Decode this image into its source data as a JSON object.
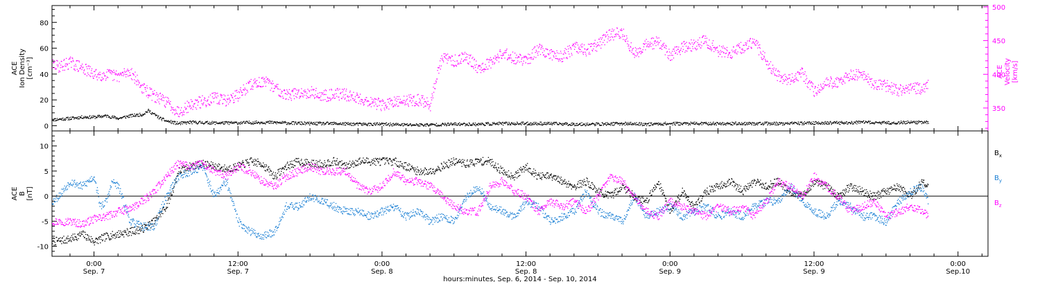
{
  "figure": {
    "xaxis_title": "hours:minutes, Sep. 6, 2014 - Sep. 10, 2014",
    "x_ticks": [
      {
        "t": 0,
        "line1": "0:00",
        "line2": "Sep. 7"
      },
      {
        "t": 12,
        "line1": "12:00",
        "line2": "Sep. 7"
      },
      {
        "t": 24,
        "line1": "0:00",
        "line2": "Sep. 8"
      },
      {
        "t": 36,
        "line1": "12:00",
        "line2": "Sep. 8"
      },
      {
        "t": 48,
        "line1": "0:00",
        "line2": "Sep. 9"
      },
      {
        "t": 60,
        "line1": "12:00",
        "line2": "Sep. 9"
      },
      {
        "t": 72,
        "line1": "0:00",
        "line2": "Sep.10"
      }
    ],
    "x_ticks_hours_note": "t = hours since Sep 7 00:00 UT",
    "colors": {
      "axis": "#000000",
      "density": "#000000",
      "velocity": "#ff00ff",
      "bx": "#000000",
      "by": "#1a7fd4",
      "bz": "#ff00ff"
    }
  },
  "chart_data": [
    {
      "type": "scatter",
      "panel": "top",
      "ylabel_left_lines": [
        "ACE",
        "Ion Density",
        "[cm⁻³]"
      ],
      "ylabel_right_lines": [
        "ACE",
        "Velocity",
        "[km/s]"
      ],
      "xlim_hours": [
        -3.5,
        74.5
      ],
      "ylim_left": [
        -4,
        93
      ],
      "ylim_right": [
        316,
        502
      ],
      "yticks_left": [
        0,
        20,
        40,
        60,
        80
      ],
      "yticks_right": [
        350,
        400,
        450,
        500
      ],
      "series": [
        {
          "name": "Ion Density",
          "axis": "left",
          "x": [
            -3.5,
            -2,
            -1,
            0,
            1,
            2,
            3,
            4,
            4.5,
            5,
            5.5,
            6,
            6.5,
            7,
            8,
            10,
            12,
            14,
            16,
            18,
            20,
            22,
            24,
            26,
            28,
            30,
            32,
            34,
            36,
            38,
            40,
            42,
            44,
            46,
            48,
            50,
            52,
            54,
            56,
            58,
            60,
            62,
            64,
            66,
            68,
            69.5
          ],
          "y": [
            5,
            6,
            7,
            7,
            8,
            6,
            8,
            9,
            12,
            9,
            6,
            4,
            3,
            2,
            3,
            2.5,
            2.5,
            3,
            2.5,
            2,
            2,
            1.5,
            1.5,
            1,
            1,
            1.5,
            1.5,
            2,
            2,
            2,
            1.5,
            1.5,
            2,
            1.5,
            2,
            2,
            2,
            2,
            2,
            2,
            2.5,
            2.5,
            3,
            2.5,
            3,
            3
          ]
        },
        {
          "name": "Velocity",
          "axis": "right",
          "x": [
            -3.5,
            -3,
            -2,
            -1,
            0,
            1,
            2,
            3,
            4,
            5,
            6,
            6.5,
            7,
            8,
            9,
            10,
            11,
            12,
            13,
            14,
            15,
            16,
            17,
            18,
            19,
            20,
            21,
            22,
            23,
            24,
            25,
            26,
            27,
            27.5,
            28,
            28.5,
            29,
            30,
            31,
            32,
            33,
            34,
            35,
            36,
            37,
            38,
            39,
            40,
            41,
            42,
            43,
            44,
            45,
            46,
            47,
            48,
            49,
            50,
            51,
            52,
            53,
            54,
            55,
            56,
            57,
            58,
            59,
            60,
            61,
            62,
            63,
            64,
            65,
            66,
            67,
            68,
            69,
            69.5
          ],
          "y": [
            415,
            412,
            418,
            410,
            400,
            400,
            398,
            405,
            380,
            368,
            360,
            352,
            345,
            355,
            360,
            365,
            362,
            370,
            385,
            390,
            382,
            370,
            372,
            375,
            368,
            372,
            370,
            365,
            360,
            355,
            358,
            362,
            362,
            360,
            355,
            395,
            425,
            420,
            428,
            410,
            418,
            432,
            425,
            420,
            438,
            430,
            428,
            440,
            435,
            445,
            460,
            462,
            430,
            445,
            448,
            428,
            440,
            445,
            450,
            435,
            432,
            440,
            448,
            420,
            398,
            392,
            402,
            375,
            388,
            390,
            400,
            398,
            385,
            384,
            375,
            382,
            378,
            385
          ]
        }
      ]
    },
    {
      "type": "scatter",
      "panel": "bottom",
      "ylabel_lines": [
        "ACE",
        "B",
        "[nT]"
      ],
      "xlim_hours": [
        -3.5,
        74.5
      ],
      "ylim": [
        -12,
        13
      ],
      "yticks": [
        -10,
        -5,
        0,
        5,
        10
      ],
      "zero_line": true,
      "series": [
        {
          "name": "Bx",
          "legend_main": "B",
          "legend_sub": "x",
          "x": [
            -3.5,
            -2,
            -1,
            0,
            1,
            2,
            3,
            4,
            5,
            6,
            6.5,
            7,
            8,
            9,
            10,
            11,
            12,
            13,
            14,
            15,
            16,
            17,
            18,
            19,
            20,
            21,
            22,
            23,
            24,
            25,
            26,
            27,
            28,
            29,
            30,
            31,
            32,
            33,
            34,
            35,
            36,
            37,
            38,
            39,
            40,
            41,
            42,
            43,
            44,
            45,
            46,
            47,
            48,
            49,
            50,
            51,
            52,
            53,
            54,
            55,
            56,
            57,
            58,
            59,
            60,
            61,
            62,
            63,
            64,
            65,
            66,
            67,
            68,
            69,
            69.5
          ],
          "y": [
            -9,
            -8.5,
            -7.5,
            -9,
            -8,
            -7.5,
            -7,
            -6.5,
            -5,
            -2,
            1,
            5,
            6,
            6.5,
            6,
            5.5,
            6,
            7,
            6.5,
            4,
            6,
            7,
            6.5,
            6.5,
            7,
            6,
            7,
            7,
            7,
            7,
            6,
            5,
            5,
            6,
            7,
            6.5,
            7,
            7,
            5,
            4,
            6,
            4,
            4,
            3,
            2,
            3,
            1,
            0,
            2,
            0,
            -1,
            3,
            -3,
            1,
            -2,
            1,
            2,
            3,
            1,
            3,
            2,
            3,
            1,
            0,
            3,
            2,
            0,
            2,
            1,
            0,
            1,
            2,
            0,
            3,
            2
          ]
        },
        {
          "name": "By",
          "legend_main": "B",
          "legend_sub": "y",
          "x": [
            -3.5,
            -3,
            -2,
            -1,
            0,
            0.5,
            1,
            1.5,
            2,
            3,
            4,
            5,
            6,
            7,
            8,
            9,
            10,
            11,
            12,
            13,
            14,
            15,
            16,
            17,
            18,
            19,
            20,
            21,
            22,
            23,
            24,
            25,
            26,
            27,
            28,
            29,
            30,
            31,
            32,
            33,
            34,
            35,
            36,
            37,
            38,
            39,
            40,
            41,
            42,
            43,
            44,
            45,
            46,
            47,
            48,
            49,
            50,
            51,
            52,
            53,
            54,
            55,
            56,
            57,
            58,
            59,
            60,
            61,
            62,
            63,
            64,
            65,
            66,
            67,
            68,
            69,
            69.5
          ],
          "y": [
            -1,
            0,
            3,
            2,
            4,
            -2,
            -1,
            3,
            2,
            -5,
            -6,
            -6,
            0,
            4,
            5,
            6,
            0,
            3,
            -5,
            -7,
            -8,
            -7,
            -2,
            -2,
            0,
            -1,
            -2,
            -3,
            -3,
            -4,
            -3,
            -2,
            -4,
            -3,
            -5,
            -4,
            -5,
            0,
            2,
            -2,
            -3,
            -4,
            -1,
            -2,
            -5,
            -4,
            -3,
            1,
            -3,
            -4,
            -5,
            0,
            -4,
            -3,
            -2,
            -4,
            -3,
            -2,
            -4,
            -3,
            -4,
            -2,
            -1,
            -1,
            2,
            -1,
            -3,
            -4,
            -1,
            -2,
            -4,
            -4,
            -5,
            -1,
            1,
            2,
            -1
          ]
        },
        {
          "name": "Bz",
          "legend_main": "B",
          "legend_sub": "z",
          "x": [
            -3.5,
            -2,
            -1,
            0,
            1,
            2,
            3,
            4,
            5,
            6,
            7,
            8,
            9,
            10,
            11,
            12,
            13,
            14,
            15,
            16,
            17,
            18,
            19,
            20,
            21,
            22,
            23,
            24,
            25,
            26,
            27,
            28,
            29,
            30,
            31,
            32,
            33,
            34,
            35,
            36,
            37,
            38,
            39,
            40,
            41,
            42,
            43,
            44,
            45,
            46,
            47,
            48,
            49,
            50,
            51,
            52,
            53,
            54,
            55,
            56,
            57,
            58,
            59,
            60,
            61,
            62,
            63,
            64,
            65,
            66,
            67,
            68,
            69,
            69.5
          ],
          "y": [
            -5,
            -5,
            -5.5,
            -4.5,
            -4,
            -3,
            -2.5,
            -1,
            1,
            4,
            6.5,
            6,
            6.5,
            5,
            4,
            6,
            5,
            3,
            2,
            4,
            5,
            6,
            5,
            5,
            5,
            2,
            1,
            2,
            5,
            3,
            3,
            2,
            0,
            -2,
            -3,
            -3,
            2,
            3,
            1,
            0,
            -3,
            -1,
            -2,
            -1,
            -3,
            0,
            4,
            3,
            0,
            -3,
            -4,
            -1,
            -2,
            -3,
            -4,
            -2,
            -3,
            -2,
            -4,
            -1,
            3,
            2,
            0,
            4,
            2,
            0,
            -3,
            -2,
            -1,
            -4,
            -3,
            -2,
            -3,
            -4
          ]
        }
      ]
    }
  ]
}
